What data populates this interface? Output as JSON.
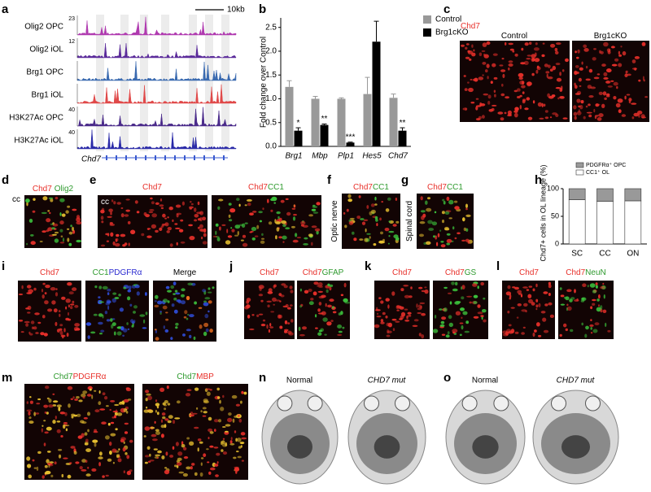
{
  "panel_letters": [
    "a",
    "b",
    "c",
    "d",
    "e",
    "f",
    "g",
    "h",
    "i",
    "j",
    "k",
    "l",
    "m",
    "n",
    "o"
  ],
  "genome_tracks": {
    "tracks": [
      {
        "label": "Olig2 OPC",
        "scale": 23,
        "color": "#b03ab0"
      },
      {
        "label": "Olig2 iOL",
        "scale": 12,
        "color": "#5a2a9a"
      },
      {
        "label": "Brg1 OPC",
        "color": "#3a6ab0"
      },
      {
        "label": "Brg1 iOL",
        "color": "#e04848"
      },
      {
        "label": "H3K27Ac OPC",
        "scale": 40,
        "color": "#4a2a8a"
      },
      {
        "label": "H3K27Ac iOL",
        "scale": 40,
        "color": "#2a2aa8"
      }
    ],
    "scale_bar": "10kb",
    "gene": "Chd7"
  },
  "chart_data": [
    {
      "type": "bar",
      "ylabel": "Fold change over Control",
      "categories": [
        "Brg1",
        "Mbp",
        "Plp1",
        "Hes5",
        "Chd7"
      ],
      "series": [
        {
          "name": "Control",
          "color": "#999999",
          "values": [
            1.25,
            1.0,
            1.0,
            1.1,
            1.02
          ],
          "errors": [
            0.13,
            0.05,
            0.02,
            0.35,
            0.08
          ]
        },
        {
          "name": "Brg1cKO",
          "color": "#000000",
          "values": [
            0.33,
            0.45,
            0.08,
            2.2,
            0.33
          ],
          "errors": [
            0.06,
            0.02,
            0.01,
            0.43,
            0.06
          ],
          "annotations": [
            "*",
            "**",
            "***",
            null,
            "**"
          ]
        }
      ],
      "ylim": [
        0,
        2.7
      ],
      "yticks": [
        {
          "value": 0,
          "label": "0.0"
        },
        {
          "value": 0.5,
          "label": "0.5"
        },
        {
          "value": 1,
          "label": "1.0"
        },
        {
          "value": 1.5,
          "label": "1.5"
        },
        {
          "value": 2,
          "label": "2.0"
        },
        {
          "value": 2.5,
          "label": "2.5"
        }
      ],
      "legend": "upper right"
    },
    {
      "type": "stacked_bar",
      "ylabel": "Chd7+ cells in OL lineage (%)",
      "categories": [
        "SC",
        "CC",
        "ON"
      ],
      "series": [
        {
          "name": "CC1⁺ OL",
          "color": "#ffffff",
          "values": [
            80,
            77,
            78
          ]
        },
        {
          "name": "PDGFRα⁺ OPC",
          "color": "#999999",
          "values": [
            20,
            23,
            22
          ]
        }
      ],
      "ylim": [
        0,
        100
      ],
      "yticks": [
        0,
        50,
        100
      ],
      "legend": "top"
    }
  ],
  "image_panels": [
    {
      "captions": [
        [
          {
            "text": "Chd7",
            "color": "#e8302a"
          }
        ],
        [
          {
            "text": "Control",
            "color": "#000000"
          }
        ],
        [
          {
            "text": "Brg1cKO",
            "color": "#000000"
          }
        ]
      ]
    },
    {
      "captions": [
        [
          {
            "text": "Chd7",
            "color": "#e8302a"
          },
          {
            "text": "Olig2",
            "color": "#2e9a2e"
          }
        ],
        [
          {
            "text": "cc",
            "color": "#000000"
          }
        ]
      ]
    },
    {
      "captions": [
        [
          {
            "text": "Chd7",
            "color": "#e8302a"
          }
        ],
        [
          {
            "text": "Chd7",
            "color": "#e8302a"
          },
          {
            "text": "CC1",
            "color": "#2e9a2e"
          }
        ],
        [
          {
            "text": "cc",
            "color": "#ffffff"
          }
        ]
      ]
    },
    {
      "captions": [
        [
          {
            "text": "Chd7",
            "color": "#e8302a"
          },
          {
            "text": "CC1",
            "color": "#2e9a2e"
          }
        ],
        [
          {
            "text": "Optic nerve",
            "color": "#000000"
          }
        ]
      ]
    },
    {
      "captions": [
        [
          {
            "text": "Chd7",
            "color": "#e8302a"
          },
          {
            "text": "CC1",
            "color": "#2e9a2e"
          }
        ],
        [
          {
            "text": "Spinal cord",
            "color": "#000000"
          }
        ]
      ]
    },
    {
      "captions": [
        [
          {
            "text": "Chd7",
            "color": "#e8302a"
          }
        ],
        [
          {
            "text": "CC1",
            "color": "#2e9a2e"
          },
          {
            "text": "PDGFRα",
            "color": "#2a2ad0"
          }
        ],
        [
          {
            "text": "Merge",
            "color": "#000000"
          }
        ]
      ]
    },
    {
      "captions": [
        [
          {
            "text": "Chd7",
            "color": "#e8302a"
          }
        ],
        [
          {
            "text": "Chd7",
            "color": "#e8302a"
          },
          {
            "text": "GFAP",
            "color": "#2e9a2e"
          }
        ]
      ]
    },
    {
      "captions": [
        [
          {
            "text": "Chd7",
            "color": "#e8302a"
          }
        ],
        [
          {
            "text": "Chd7",
            "color": "#e8302a"
          },
          {
            "text": "GS",
            "color": "#2e9a2e"
          }
        ]
      ]
    },
    {
      "captions": [
        [
          {
            "text": "Chd7",
            "color": "#e8302a"
          }
        ],
        [
          {
            "text": "Chd7",
            "color": "#e8302a"
          },
          {
            "text": "NeuN",
            "color": "#2e9a2e"
          }
        ]
      ]
    },
    {
      "captions": [
        [
          {
            "text": "Chd7",
            "color": "#2e9a2e"
          },
          {
            "text": "PDGFRα",
            "color": "#e8302a"
          }
        ],
        [
          {
            "text": "Chd7",
            "color": "#2e9a2e"
          },
          {
            "text": "MBP",
            "color": "#e8302a"
          }
        ]
      ]
    }
  ],
  "mri_panels": [
    {
      "captions": [
        "Normal",
        "CHD7 mut"
      ]
    },
    {
      "captions": [
        "Normal",
        "CHD7 mut"
      ]
    }
  ]
}
